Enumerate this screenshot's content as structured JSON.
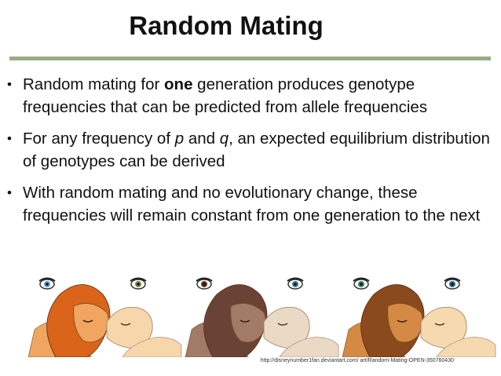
{
  "slide": {
    "title": "Random Mating",
    "bullets": [
      {
        "parts": [
          {
            "text": "Random mating for ",
            "style": "normal"
          },
          {
            "text": "one",
            "style": "bold"
          },
          {
            "text": " generation produces genotype frequencies that can be predicted from allele frequencies",
            "style": "normal"
          }
        ]
      },
      {
        "parts": [
          {
            "text": "For any frequency of ",
            "style": "normal"
          },
          {
            "text": "p",
            "style": "italic"
          },
          {
            "text": " and ",
            "style": "normal"
          },
          {
            "text": "q",
            "style": "italic"
          },
          {
            "text": ", an expected equilibrium distribution of genotypes can be derived",
            "style": "normal"
          }
        ]
      },
      {
        "parts": [
          {
            "text": "With random mating and no evolutionary change, these frequencies will remain constant from one generation to the next",
            "style": "normal"
          }
        ]
      }
    ],
    "bullet_glyph": "•",
    "image_credit": "http://disneynumber1fan.deviantart.com/ art/Random-Mating-OPEN-350760430",
    "artwork": {
      "panels": [
        {
          "label": "lion-pair-1",
          "male_mane": "#d9641a",
          "male_fur": "#f0a560",
          "female_fur": "#f6d6ab",
          "eye_male": "#5aa0d0",
          "eye_female": "#7a8a3a"
        },
        {
          "label": "lion-pair-2",
          "male_mane": "#6b4336",
          "male_fur": "#a27a68",
          "female_fur": "#ead9c4",
          "eye_male": "#6b3a1a",
          "eye_female": "#3a7a8a"
        },
        {
          "label": "lion-pair-3",
          "male_mane": "#8a4a1e",
          "male_fur": "#d48a44",
          "female_fur": "#f6d9ae",
          "eye_male": "#2a8a5a",
          "eye_female": "#2a6a8a"
        }
      ]
    }
  }
}
